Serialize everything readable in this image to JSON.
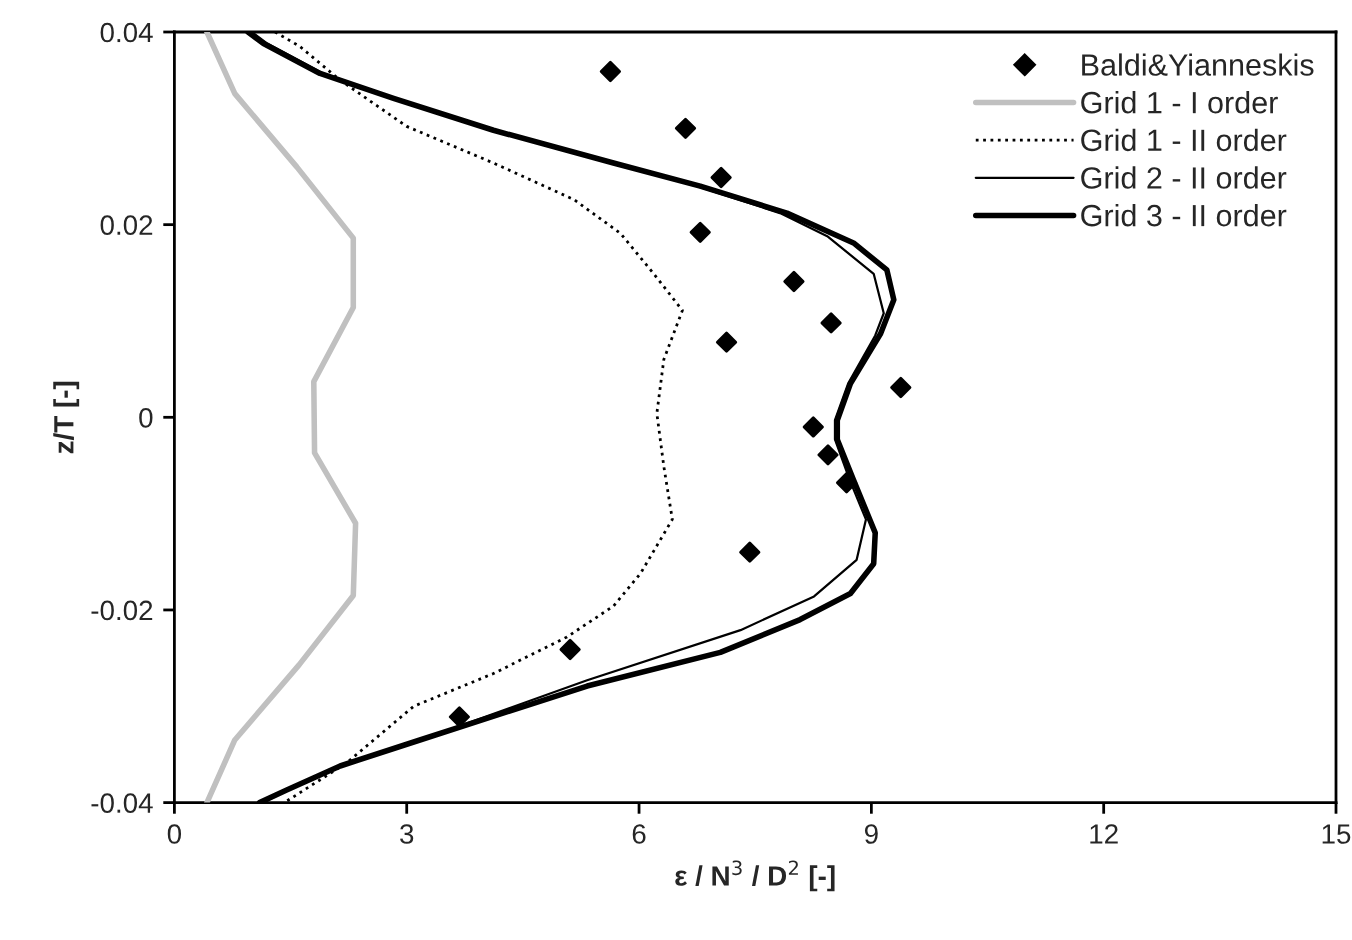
{
  "chart_data": {
    "type": "line",
    "xlabel": "ε / N$^{3}$ / D$^{2}$ [-]",
    "ylabel": "z/T [-]",
    "xlim": [
      0,
      15
    ],
    "xticks": [
      0,
      3,
      6,
      9,
      12,
      15
    ],
    "ylim": [
      -0.04,
      0.04
    ],
    "yticks": [
      -0.04,
      -0.02,
      0,
      0.02,
      0.04
    ],
    "grid": false,
    "legend": "top right",
    "series": [
      {
        "name": "Baldi&Yianneskis",
        "type": "scatter",
        "marker": "diamond",
        "color": "#000000",
        "x": [
          5.63,
          6.6,
          7.06,
          6.79,
          8.0,
          8.48,
          7.13,
          9.38,
          8.25,
          8.44,
          8.68,
          7.43,
          5.11,
          3.68
        ],
        "values": [
          0.0359,
          0.03,
          0.0249,
          0.0192,
          0.0141,
          0.0098,
          0.0078,
          0.0031,
          -0.001,
          -0.0039,
          -0.0068,
          -0.014,
          -0.0241,
          -0.0311
        ]
      },
      {
        "name": "Grid 1 - I order",
        "line_style": "solid",
        "color": "#c0c0c0",
        "x": [
          0.42,
          0.78,
          1.58,
          2.31,
          2.31,
          1.8,
          1.81,
          2.34,
          2.31,
          1.61,
          0.78,
          0.42
        ],
        "values": [
          0.04,
          0.0336,
          0.026,
          0.0186,
          0.0114,
          0.0037,
          -0.0037,
          -0.011,
          -0.0185,
          -0.0257,
          -0.0335,
          -0.04
        ]
      },
      {
        "name": "Grid 1 - II order",
        "line_style": "dotted",
        "color": "#000000",
        "x": [
          1.3,
          1.62,
          2.14,
          3.0,
          4.12,
          5.16,
          5.76,
          6.19,
          6.56,
          6.32,
          6.23,
          6.32,
          6.43,
          6.02,
          5.67,
          5.07,
          4.12,
          3.09,
          2.22,
          1.42
        ],
        "values": [
          0.04,
          0.0385,
          0.035,
          0.0302,
          0.0264,
          0.0226,
          0.0191,
          0.0149,
          0.0111,
          0.006,
          0.0004,
          -0.0051,
          -0.0106,
          -0.0162,
          -0.0196,
          -0.0228,
          -0.0266,
          -0.03,
          -0.0359,
          -0.04
        ]
      },
      {
        "name": "Grid 2 - II order",
        "line_style": "solid",
        "color": "#000000",
        "x": [
          1.0,
          1.2,
          1.92,
          2.86,
          4.12,
          5.65,
          6.75,
          7.82,
          8.43,
          9.03,
          9.16,
          9.05,
          8.7,
          8.53,
          8.53,
          8.72,
          8.93,
          8.81,
          8.26,
          7.31,
          5.33,
          3.25,
          2.2,
          1.5,
          1.15
        ],
        "values": [
          0.04,
          0.0388,
          0.0357,
          0.0331,
          0.0298,
          0.0264,
          0.024,
          0.0212,
          0.0188,
          0.0149,
          0.0108,
          0.0085,
          0.0035,
          -0.0003,
          -0.0023,
          -0.0065,
          -0.0106,
          -0.0148,
          -0.0186,
          -0.0221,
          -0.0273,
          -0.0333,
          -0.036,
          -0.0385,
          -0.04
        ]
      },
      {
        "name": "Grid 3 - II order",
        "line_style": "solid",
        "color": "#000000",
        "x": [
          0.95,
          1.15,
          1.88,
          2.83,
          4.12,
          5.67,
          6.79,
          7.91,
          8.77,
          9.2,
          9.29,
          9.12,
          8.73,
          8.56,
          8.56,
          8.77,
          9.05,
          9.03,
          8.73,
          8.08,
          7.05,
          5.33,
          3.17,
          2.14,
          1.45,
          1.1
        ],
        "values": [
          0.04,
          0.0388,
          0.0357,
          0.0331,
          0.0298,
          0.0264,
          0.024,
          0.0212,
          0.0181,
          0.0153,
          0.0122,
          0.0087,
          0.0035,
          -0.0003,
          -0.0023,
          -0.0065,
          -0.012,
          -0.0152,
          -0.0183,
          -0.021,
          -0.0244,
          -0.0279,
          -0.0335,
          -0.0362,
          -0.0387,
          -0.04
        ]
      }
    ]
  }
}
